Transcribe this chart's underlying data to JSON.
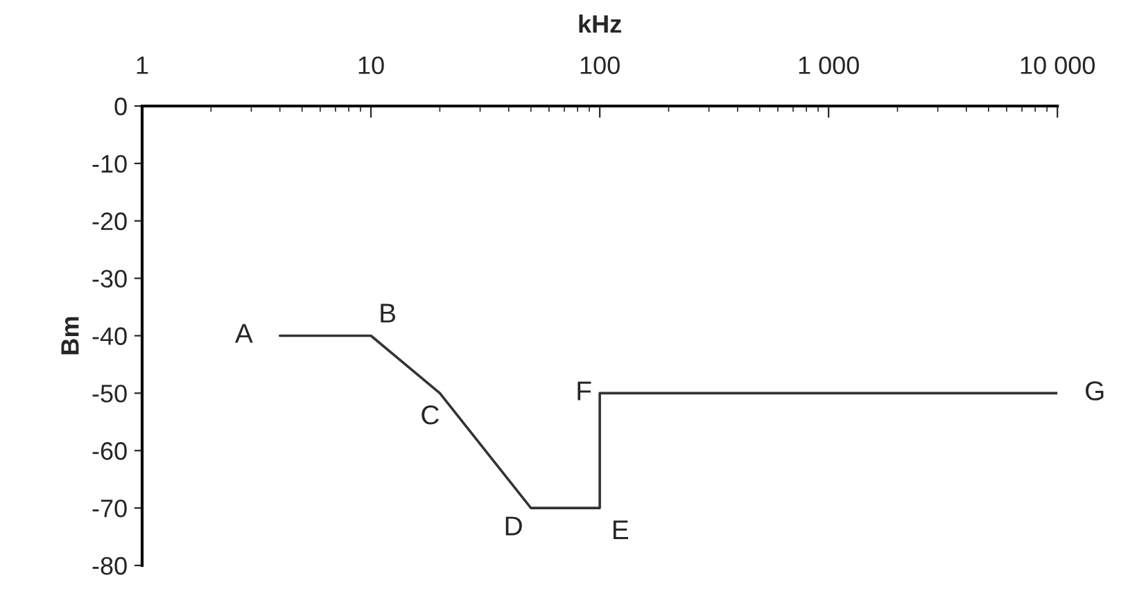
{
  "chart_data": {
    "type": "line",
    "xlabel": "kHz",
    "ylabel": "Bm",
    "log": "x",
    "x": [
      4,
      10,
      20,
      50,
      100,
      100,
      10000
    ],
    "series": [
      {
        "color": "#333333",
        "values": [
          -40,
          -40,
          -50,
          -70,
          -70,
          -50,
          -50
        ]
      }
    ],
    "xlim": [
      1,
      10000
    ],
    "xticks": [
      1,
      10,
      100,
      {
        "value": 1000,
        "label": "1 000"
      },
      {
        "value": 10000,
        "label": "10 000"
      }
    ],
    "ylim": [
      -80,
      0
    ],
    "yticks": [
      0,
      -10,
      -20,
      -30,
      -40,
      -50,
      -60,
      -70,
      -80
    ],
    "grid": false,
    "legend": false,
    "marker": "none",
    "line_style": "solid",
    "annotations": [
      {
        "text": "A",
        "x": 4,
        "y": -40
      },
      {
        "text": "B",
        "x": 10,
        "y": -40
      },
      {
        "text": "C",
        "x": 20,
        "y": -50
      },
      {
        "text": "D",
        "x": 50,
        "y": -70
      },
      {
        "text": "E",
        "x": 100,
        "y": -70
      },
      {
        "text": "F",
        "x": 100,
        "y": -50
      },
      {
        "text": "G",
        "x": 10000,
        "y": -50
      }
    ]
  }
}
